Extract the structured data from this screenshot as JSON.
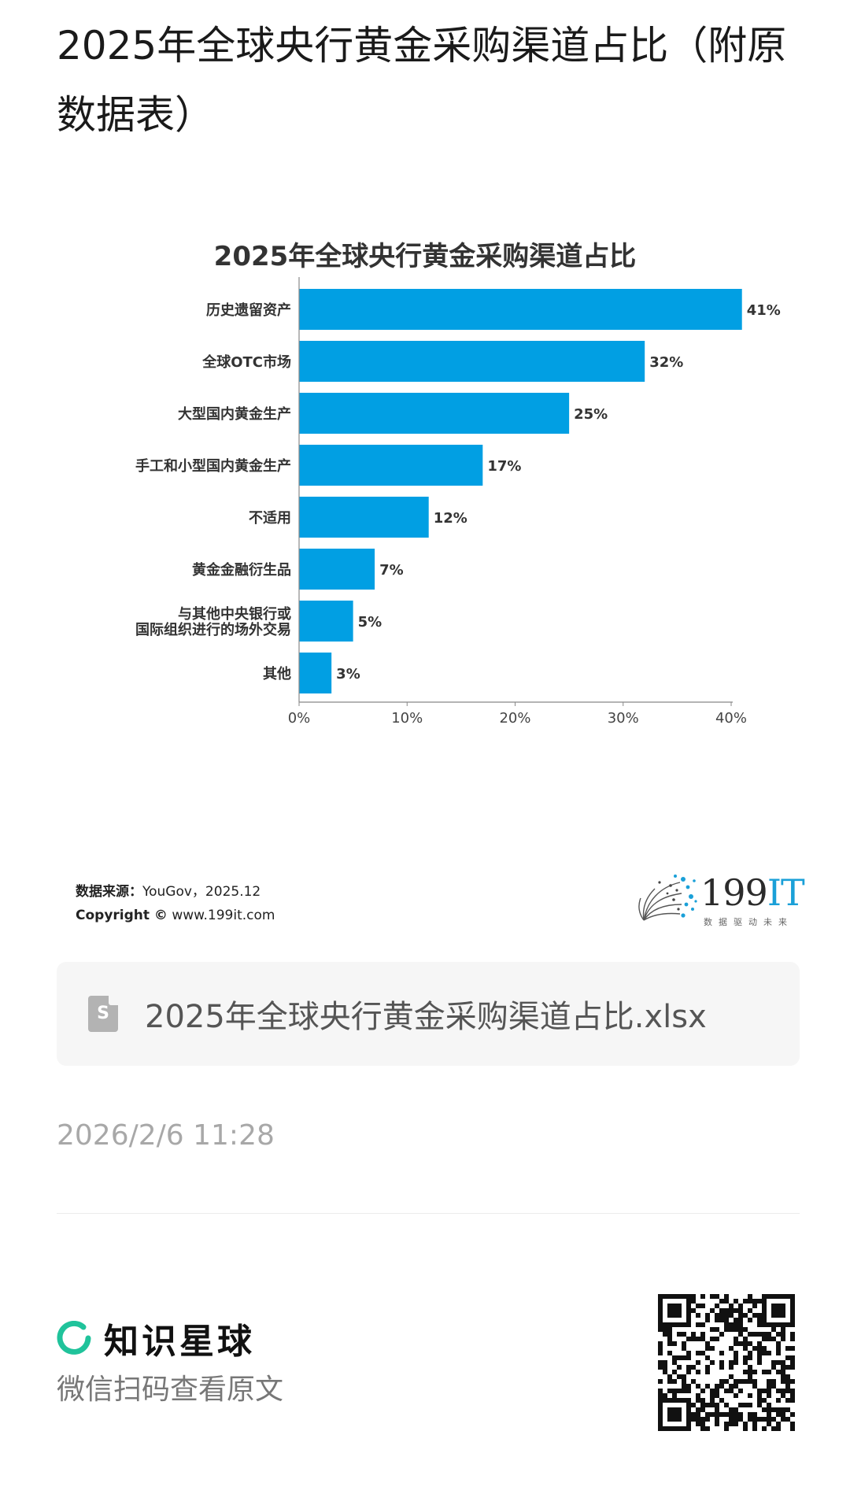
{
  "page": {
    "title": "2025年全球央行黄金采购渠道占比（附原数据表）"
  },
  "chart_data": {
    "type": "bar",
    "orientation": "horizontal",
    "title": "2025年全球央行黄金采购渠道占比",
    "categories": [
      "历史遗留资产",
      "全球OTC市场",
      "大型国内黄金生产",
      "手工和小型国内黄金生产",
      "不适用",
      "黄金金融衍生品",
      "与其他中央银行或\n国际组织进行的场外交易",
      "其他"
    ],
    "values": [
      41,
      32,
      25,
      17,
      12,
      7,
      5,
      3
    ],
    "value_labels": [
      "41%",
      "32%",
      "25%",
      "17%",
      "12%",
      "7%",
      "5%",
      "3%"
    ],
    "xlim": [
      0,
      40
    ],
    "x_ticks": [
      "0%",
      "10%",
      "20%",
      "30%",
      "40%"
    ],
    "grid": false,
    "bar_color": "#019fe3"
  },
  "source": {
    "label": "数据来源：",
    "value": "YouGov，2025.12",
    "copyright_label": "Copyright ©",
    "copyright_value": "www.199it.com"
  },
  "brand_logo": {
    "text_main": "199",
    "text_accent": "IT",
    "tagline": "数据驱动未来"
  },
  "attachment": {
    "icon": "spreadsheet-file-icon",
    "icon_glyph": "S",
    "file_name": "2025年全球央行黄金采购渠道占比.xlsx"
  },
  "meta": {
    "timestamp": "2026/2/6 11:28"
  },
  "footer": {
    "app_name": "知识星球",
    "scan_hint": "微信扫码查看原文",
    "accent_color": "#20c39b"
  }
}
